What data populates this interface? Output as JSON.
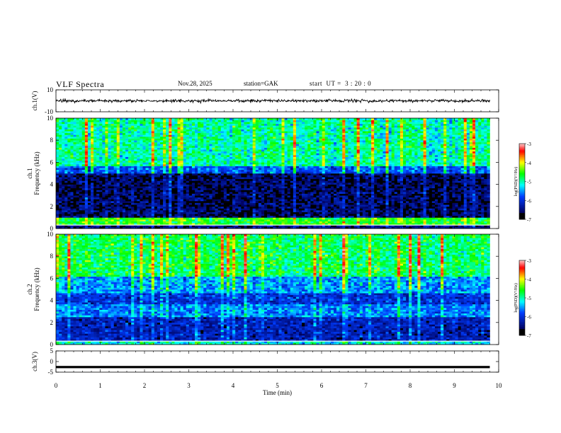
{
  "header": {
    "title": "VLF Spectra",
    "date": "Nov.28, 2025",
    "station": "station=GAK",
    "start": "start  UT =  3 : 20 : 0"
  },
  "chart_data": [
    {
      "type": "line",
      "name": "ch1-waveform",
      "ylabel": "ch.1(V)",
      "ylim": [
        -10,
        10
      ],
      "yticks": [
        "10",
        "-10"
      ],
      "xlim": [
        0,
        10
      ],
      "baseline": 0,
      "line_color": "#000000"
    },
    {
      "type": "heatmap",
      "name": "ch1-spectrogram",
      "ylabel": "ch.1\nFrequency (kHz)",
      "ylim": [
        0,
        10
      ],
      "yticks": [
        "0",
        "2",
        "4",
        "6",
        "8",
        "10"
      ],
      "xlim": [
        0,
        10
      ],
      "data_end_min": 9.8,
      "bands_kHz": [
        {
          "from": 0,
          "to": 0.3,
          "level": -6.5
        },
        {
          "from": 0.3,
          "to": 1.0,
          "level": -4.6
        },
        {
          "from": 1.0,
          "to": 5.0,
          "level": -6.6
        },
        {
          "from": 5.0,
          "to": 5.6,
          "level": -5.8
        },
        {
          "from": 5.6,
          "to": 10,
          "level": -5.0
        }
      ],
      "colorbar": {
        "label": "log(PSD)(V²/Hz)",
        "ticks": [
          "-3",
          "-4",
          "-5",
          "-6",
          "-7"
        ],
        "range": [
          -7,
          -3
        ]
      }
    },
    {
      "type": "heatmap",
      "name": "ch2-spectrogram",
      "ylabel": "ch.2\nFrequency (kHz)",
      "ylim": [
        0,
        10
      ],
      "yticks": [
        "0",
        "2",
        "4",
        "6",
        "8",
        "10"
      ],
      "xlim": [
        0,
        10
      ],
      "data_end_min": 9.8,
      "bands_kHz": [
        {
          "from": 0,
          "to": 0.4,
          "level": -5.2
        },
        {
          "from": 0.4,
          "to": 2.5,
          "level": -6.2
        },
        {
          "from": 2.5,
          "to": 3.6,
          "level": -5.6
        },
        {
          "from": 3.6,
          "to": 4.6,
          "level": -6.0
        },
        {
          "from": 4.6,
          "to": 6.2,
          "level": -5.5
        },
        {
          "from": 6.2,
          "to": 10,
          "level": -4.8
        }
      ],
      "colorbar": {
        "label": "log(PSD)(V²/Hz)",
        "ticks": [
          "-3",
          "-4",
          "-5",
          "-6",
          "-7"
        ],
        "range": [
          -7,
          -3
        ]
      }
    },
    {
      "type": "line",
      "name": "ch3-waveform",
      "ylabel": "ch.3(V)",
      "ylim": [
        -5,
        5
      ],
      "yticks": [
        "5",
        "0",
        "-5"
      ],
      "xlim": [
        0,
        10
      ],
      "baseline": -2.6,
      "line_color": "#000000"
    }
  ],
  "xaxis": {
    "label": "Time  (min)",
    "ticks": [
      "0",
      "1",
      "2",
      "3",
      "4",
      "5",
      "6",
      "7",
      "8",
      "9",
      "10"
    ],
    "range": [
      0,
      10
    ]
  }
}
